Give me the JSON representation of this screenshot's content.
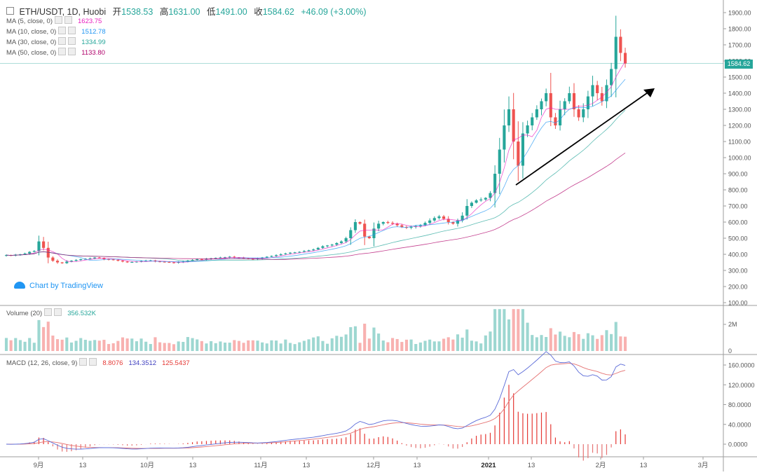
{
  "header": {
    "symbol": "ETH/USDT, 1D, Huobi",
    "open_label": "开",
    "open": "1538.53",
    "high_label": "高",
    "high": "1631.00",
    "low_label": "低",
    "low": "1491.00",
    "close_label": "收",
    "close": "1584.62",
    "change": "+46.09 (+3.00%)"
  },
  "ma_legend": [
    {
      "label": "MA (5, close, 0)",
      "value": "1623.75",
      "color": "#e91ec0"
    },
    {
      "label": "MA (10, close, 0)",
      "value": "1512.78",
      "color": "#2196f3"
    },
    {
      "label": "MA (30, close, 0)",
      "value": "1334.99",
      "color": "#26a69a"
    },
    {
      "label": "MA (50, close, 0)",
      "value": "1133.80",
      "color": "#b0006a"
    }
  ],
  "price_tag": "1584.62",
  "branding": "Chart by TradingView",
  "volume_legend": {
    "label": "Volume (20)",
    "value": "356.532K"
  },
  "macd_legend": {
    "label": "MACD (12, 26, close, 9)",
    "hist": "8.8076",
    "macd": "134.3512",
    "signal": "125.5437"
  },
  "colors": {
    "up": "#26a69a",
    "down": "#ef5350",
    "macd_line": "#5b6bd8",
    "signal_line": "#e57373"
  },
  "chart_data": {
    "type": "candlestick",
    "title": "ETH/USDT, 1D, Huobi",
    "x_tick_labels": [
      "9月",
      "13",
      "10月",
      "13",
      "11月",
      "13",
      "12月",
      "13",
      "2021",
      "13",
      "2月",
      "13",
      "3月"
    ],
    "price_axis": {
      "ticks": [
        "1900.00",
        "1800.00",
        "1700.00",
        "1600.00",
        "1500.00",
        "1400.00",
        "1300.00",
        "1200.00",
        "1100.00",
        "1000.00",
        "900.00",
        "800.00",
        "700.00",
        "600.00",
        "500.00",
        "400.00",
        "300.00",
        "200.00",
        "100.00"
      ],
      "range": [
        100,
        1900
      ]
    },
    "volume_axis": {
      "ticks": [
        "2M",
        "0"
      ]
    },
    "macd_axis": {
      "ticks": [
        "160.0000",
        "120.0000",
        "80.0000",
        "40.0000",
        "0.0000"
      ]
    },
    "closes_approx": [
      395,
      392,
      398,
      400,
      405,
      415,
      420,
      480,
      440,
      380,
      360,
      350,
      345,
      355,
      360,
      365,
      370,
      372,
      375,
      380,
      378,
      370,
      368,
      365,
      360,
      355,
      350,
      352,
      355,
      358,
      360,
      362,
      356,
      354,
      352,
      350,
      348,
      352,
      355,
      360,
      365,
      370,
      368,
      372,
      375,
      378,
      380,
      382,
      385,
      380,
      378,
      375,
      372,
      370,
      374,
      380,
      385,
      390,
      395,
      400,
      405,
      410,
      412,
      415,
      420,
      425,
      430,
      440,
      450,
      455,
      460,
      470,
      480,
      500,
      550,
      600,
      590,
      510,
      500,
      560,
      590,
      600,
      595,
      590,
      580,
      570,
      565,
      570,
      575,
      580,
      595,
      610,
      625,
      635,
      620,
      600,
      590,
      610,
      640,
      700,
      720,
      735,
      740,
      750,
      780,
      900,
      1050,
      1200,
      1300,
      1100,
      950,
      1150,
      1200,
      1250,
      1300,
      1350,
      1400,
      1250,
      1200,
      1300,
      1350,
      1400,
      1300,
      1250,
      1300,
      1380,
      1450,
      1400,
      1350,
      1450,
      1550,
      1750,
      1650,
      1584.62
    ],
    "ma_last": {
      "MA5": 1623.75,
      "MA10": 1512.78,
      "MA30": 1334.99,
      "MA50": 1133.8
    }
  }
}
